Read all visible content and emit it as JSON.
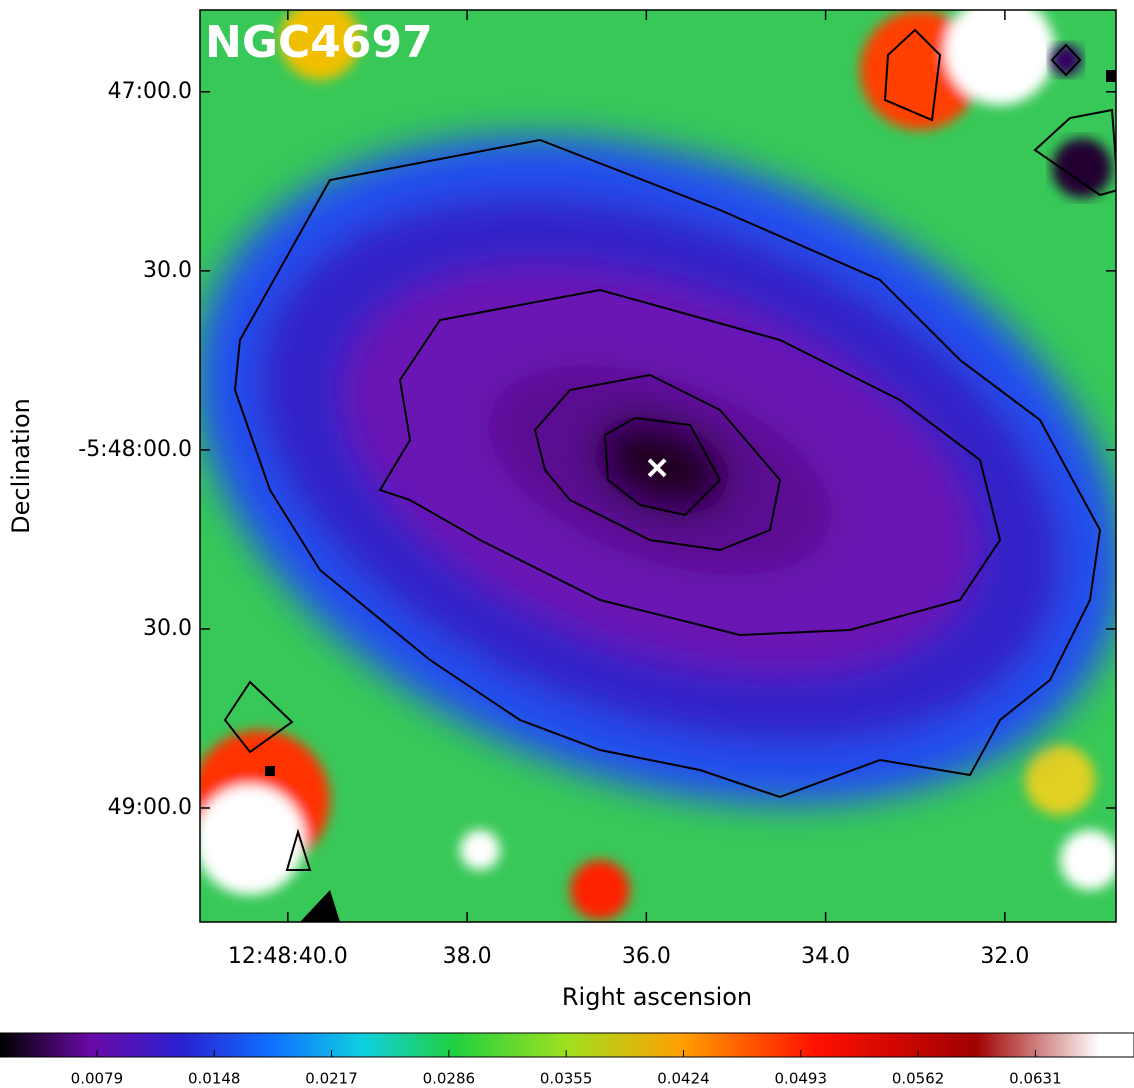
{
  "chart_data": {
    "type": "image",
    "title": "NGC4697",
    "xlabel": "Right ascension",
    "ylabel": "Declination",
    "xlim": [
      40.98,
      30.76
    ],
    "xticks": [
      {
        "value": 40,
        "label": "12:48:40.0"
      },
      {
        "value": 38,
        "label": "38.0"
      },
      {
        "value": 36,
        "label": "36.0"
      },
      {
        "value": 34,
        "label": "34.0"
      },
      {
        "value": 32,
        "label": "32.0"
      }
    ],
    "ylim": [
      -20959.1,
      -20806.3
    ],
    "yticks": [
      {
        "value": -20820,
        "label": "47:00.0"
      },
      {
        "value": -20850,
        "label": "30.0"
      },
      {
        "value": -20880,
        "label": "-5:48:00.0"
      },
      {
        "value": -20910,
        "label": "30.0"
      },
      {
        "value": -20940,
        "label": "49:00.0"
      }
    ],
    "center": {
      "x": 35.88,
      "y": -20883,
      "color": "#ffffff"
    },
    "clim": [
      0.0022,
      0.0689
    ],
    "cticks": [
      0.0079,
      0.0148,
      0.0217,
      0.0286,
      0.0355,
      0.0424,
      0.0493,
      0.0562,
      0.0631
    ]
  }
}
